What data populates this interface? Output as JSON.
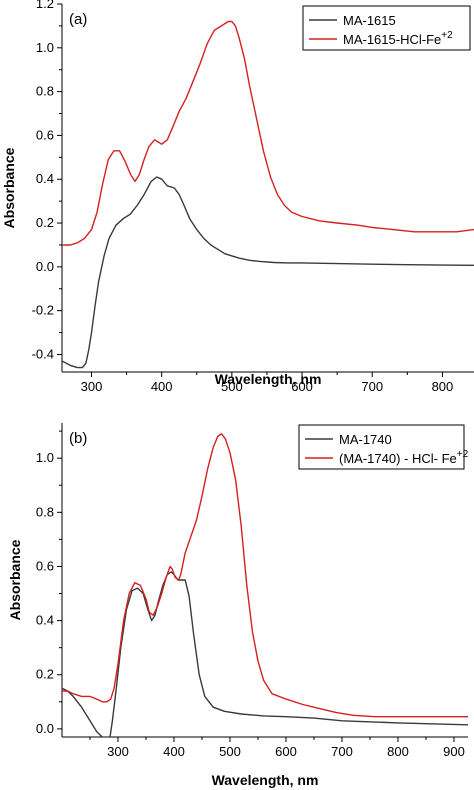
{
  "chart_data": [
    {
      "type": "line",
      "panel_label": "(a)",
      "xlabel": "Wavelength, nm",
      "ylabel": "Absorbance",
      "xlim": [
        258,
        845
      ],
      "ylim": [
        -0.48,
        1.2
      ],
      "xticks": [
        300,
        400,
        500,
        600,
        700,
        800
      ],
      "yticks": [
        -0.4,
        -0.2,
        0.0,
        0.2,
        0.4,
        0.6,
        0.8,
        1.0,
        1.2
      ],
      "ytick_labels": [
        "-0.4",
        "-0.2",
        "0.0",
        "0.2",
        "0.4",
        "0.6",
        "0.8",
        "1.0",
        "1.2"
      ],
      "legend_position": "top-right",
      "series": [
        {
          "name": "MA-1615",
          "color": "#3a3a3a",
          "x": [
            258,
            270,
            280,
            287,
            292,
            296,
            300,
            305,
            310,
            318,
            325,
            335,
            345,
            355,
            365,
            375,
            385,
            393,
            400,
            408,
            418,
            425,
            432,
            440,
            450,
            460,
            470,
            480,
            490,
            500,
            510,
            525,
            540,
            560,
            580,
            600,
            650,
            700,
            750,
            800,
            845
          ],
          "y": [
            -0.43,
            -0.45,
            -0.46,
            -0.46,
            -0.44,
            -0.38,
            -0.3,
            -0.18,
            -0.07,
            0.05,
            0.13,
            0.19,
            0.22,
            0.24,
            0.28,
            0.33,
            0.39,
            0.41,
            0.4,
            0.37,
            0.36,
            0.33,
            0.28,
            0.22,
            0.17,
            0.13,
            0.1,
            0.08,
            0.06,
            0.05,
            0.04,
            0.03,
            0.025,
            0.02,
            0.018,
            0.018,
            0.015,
            0.012,
            0.01,
            0.008,
            0.007
          ]
        },
        {
          "name": "MA-1615-HCl-Fe+2",
          "color": "#d42020",
          "x": [
            258,
            270,
            280,
            290,
            300,
            308,
            316,
            324,
            332,
            340,
            348,
            356,
            362,
            368,
            375,
            382,
            390,
            395,
            400,
            408,
            416,
            425,
            435,
            445,
            455,
            465,
            475,
            485,
            495,
            500,
            505,
            510,
            518,
            525,
            535,
            545,
            555,
            565,
            575,
            585,
            600,
            625,
            650,
            680,
            700,
            730,
            760,
            790,
            820,
            845
          ],
          "y": [
            0.1,
            0.1,
            0.11,
            0.13,
            0.17,
            0.25,
            0.38,
            0.49,
            0.53,
            0.53,
            0.48,
            0.42,
            0.39,
            0.42,
            0.49,
            0.55,
            0.58,
            0.57,
            0.56,
            0.58,
            0.64,
            0.71,
            0.77,
            0.85,
            0.93,
            1.02,
            1.08,
            1.1,
            1.12,
            1.12,
            1.1,
            1.05,
            0.95,
            0.83,
            0.68,
            0.53,
            0.41,
            0.33,
            0.28,
            0.25,
            0.23,
            0.21,
            0.2,
            0.19,
            0.18,
            0.17,
            0.16,
            0.16,
            0.16,
            0.17
          ]
        }
      ]
    },
    {
      "type": "line",
      "panel_label": "(b)",
      "xlabel": "Wavelength, nm",
      "ylabel": "Absorbance",
      "xlim": [
        200,
        925
      ],
      "ylim": [
        -0.03,
        1.13
      ],
      "xticks": [
        300,
        400,
        500,
        600,
        700,
        800,
        900
      ],
      "yticks": [
        0.0,
        0.2,
        0.4,
        0.6,
        0.8,
        1.0
      ],
      "ytick_labels": [
        "0.0",
        "0.2",
        "0.4",
        "0.6",
        "0.8",
        "1.0"
      ],
      "legend_position": "top-right",
      "series": [
        {
          "name": "MA-1740",
          "color": "#3a3a3a",
          "x": [
            200,
            210,
            220,
            235,
            250,
            262,
            272,
            280,
            285,
            290,
            297,
            305,
            315,
            325,
            335,
            345,
            352,
            360,
            366,
            372,
            380,
            388,
            395,
            400,
            407,
            415,
            420,
            427,
            435,
            445,
            455,
            470,
            490,
            520,
            560,
            600,
            650,
            700,
            800,
            925
          ],
          "y": [
            0.15,
            0.14,
            0.12,
            0.08,
            0.03,
            -0.01,
            -0.03,
            -0.05,
            -0.04,
            0.03,
            0.15,
            0.3,
            0.44,
            0.51,
            0.52,
            0.5,
            0.45,
            0.4,
            0.42,
            0.47,
            0.53,
            0.57,
            0.58,
            0.57,
            0.55,
            0.55,
            0.55,
            0.49,
            0.35,
            0.2,
            0.12,
            0.08,
            0.065,
            0.055,
            0.048,
            0.045,
            0.04,
            0.03,
            0.022,
            0.015
          ]
        },
        {
          "name": "(MA-1740) - HCl- Fe+2",
          "color": "#d42020",
          "x": [
            200,
            210,
            220,
            235,
            250,
            262,
            272,
            280,
            287,
            293,
            300,
            310,
            320,
            330,
            340,
            350,
            356,
            363,
            370,
            378,
            386,
            393,
            397,
            402,
            408,
            412,
            420,
            430,
            440,
            450,
            460,
            470,
            478,
            485,
            492,
            500,
            510,
            520,
            530,
            540,
            550,
            560,
            575,
            600,
            630,
            660,
            690,
            720,
            760,
            800,
            850,
            925
          ],
          "y": [
            0.14,
            0.14,
            0.13,
            0.12,
            0.12,
            0.11,
            0.1,
            0.1,
            0.11,
            0.15,
            0.24,
            0.4,
            0.5,
            0.54,
            0.53,
            0.48,
            0.43,
            0.42,
            0.45,
            0.5,
            0.56,
            0.6,
            0.59,
            0.56,
            0.55,
            0.57,
            0.65,
            0.71,
            0.77,
            0.86,
            0.96,
            1.04,
            1.08,
            1.09,
            1.07,
            1.02,
            0.92,
            0.75,
            0.53,
            0.36,
            0.25,
            0.18,
            0.13,
            0.11,
            0.09,
            0.075,
            0.06,
            0.05,
            0.045,
            0.045,
            0.045,
            0.045
          ]
        }
      ]
    }
  ]
}
